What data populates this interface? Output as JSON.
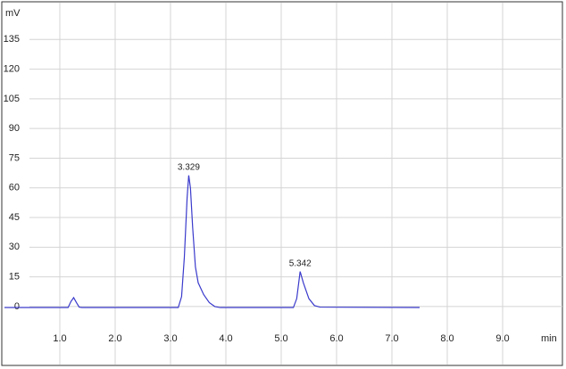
{
  "chart_data": {
    "type": "line",
    "y_label": "mV",
    "x_label": "min",
    "x": [
      0,
      1.15,
      1.2,
      1.25,
      1.3,
      1.35,
      1.4,
      3.14,
      3.2,
      3.25,
      3.3,
      3.329,
      3.36,
      3.4,
      3.45,
      3.5,
      3.6,
      3.7,
      3.8,
      3.9,
      5.22,
      5.28,
      5.342,
      5.4,
      5.5,
      5.6,
      5.7,
      7.5
    ],
    "series": [
      {
        "color": "#3a3acc",
        "values": [
          -0.5,
          -0.5,
          2.5,
          4.5,
          2,
          -0.3,
          -0.5,
          -0.5,
          5,
          25,
          55,
          66.3,
          60,
          40,
          20,
          12,
          6,
          2,
          0,
          -0.5,
          -0.5,
          4,
          17.7,
          12,
          4,
          0.5,
          -0.3,
          -0.5
        ]
      }
    ],
    "annotations": [
      {
        "text": "3.329",
        "x": 3.329,
        "y": 66.3
      },
      {
        "text": "5.342",
        "x": 5.342,
        "y": 17.7
      }
    ],
    "xlim": [
      0,
      10.0
    ],
    "xticks": [
      {
        "value": 1,
        "label": "1.0"
      },
      {
        "value": 2,
        "label": "2.0"
      },
      {
        "value": 3,
        "label": "3.0"
      },
      {
        "value": 4,
        "label": "4.0"
      },
      {
        "value": 5,
        "label": "5.0"
      },
      {
        "value": 6,
        "label": "6.0"
      },
      {
        "value": 7,
        "label": "7.0"
      },
      {
        "value": 8,
        "label": "8.0"
      },
      {
        "value": 9,
        "label": "9.0"
      }
    ],
    "ylim": [
      -10.4,
      153.6
    ],
    "yticks": [
      0,
      15,
      30,
      45,
      60,
      75,
      90,
      105,
      120,
      135
    ],
    "grid": true
  }
}
